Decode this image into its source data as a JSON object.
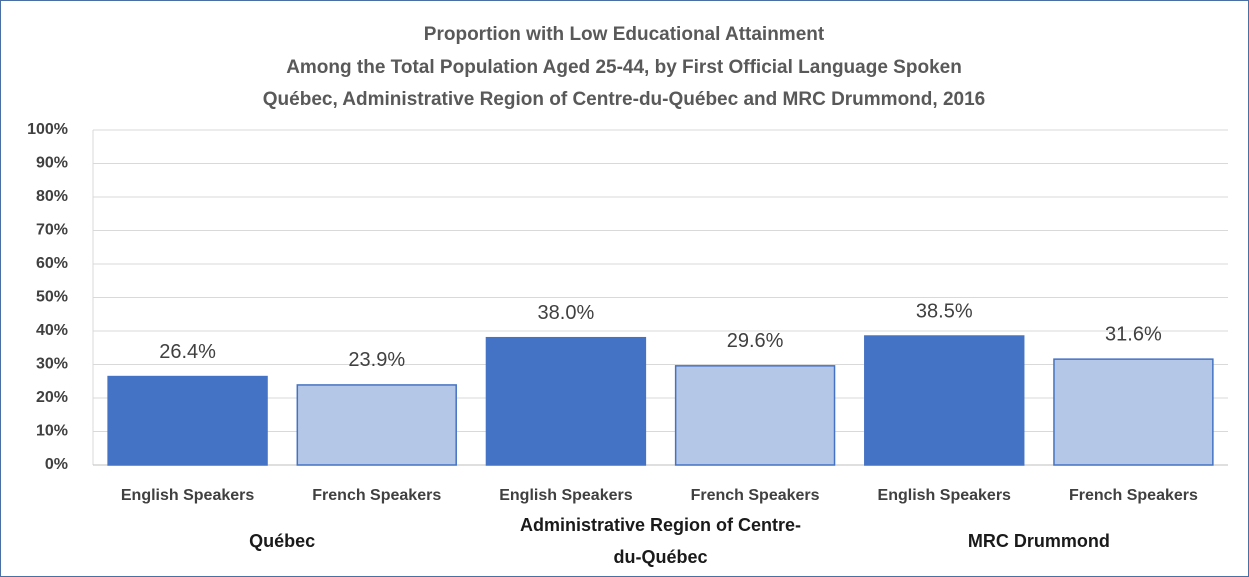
{
  "chart_data": {
    "type": "bar",
    "title": [
      "Proportion with Low Educational Attainment",
      "Among the Total Population Aged 25-44, by First Official Language Spoken",
      "Québec, Administrative Region of Centre-du-Québec and MRC Drummond, 2016"
    ],
    "categories": [
      "English Speakers",
      "French Speakers",
      "English Speakers",
      "French Speakers",
      "English Speakers",
      "French Speakers"
    ],
    "groups": [
      "Québec",
      "Administrative Region of Centre-du-Québec",
      "MRC Drummond"
    ],
    "values": [
      26.4,
      23.9,
      38.0,
      29.6,
      38.5,
      31.6
    ],
    "value_labels": [
      "26.4%",
      "23.9%",
      "38.0%",
      "29.6%",
      "38.5%",
      "31.6%"
    ],
    "colors": [
      "#4472c4",
      "#b4c7e7",
      "#4472c4",
      "#b4c7e7",
      "#4472c4",
      "#b4c7e7"
    ],
    "ylim": [
      0,
      100
    ],
    "yticks": [
      {
        "value": 0,
        "label": "0%"
      },
      {
        "value": 10,
        "label": "10%"
      },
      {
        "value": 20,
        "label": "20%"
      },
      {
        "value": 30,
        "label": "30%"
      },
      {
        "value": 40,
        "label": "40%"
      },
      {
        "value": 50,
        "label": "50%"
      },
      {
        "value": 60,
        "label": "60%"
      },
      {
        "value": 70,
        "label": "70%"
      },
      {
        "value": 80,
        "label": "80%"
      },
      {
        "value": 90,
        "label": "90%"
      },
      {
        "value": 100,
        "label": "100%"
      }
    ],
    "grid": true
  }
}
